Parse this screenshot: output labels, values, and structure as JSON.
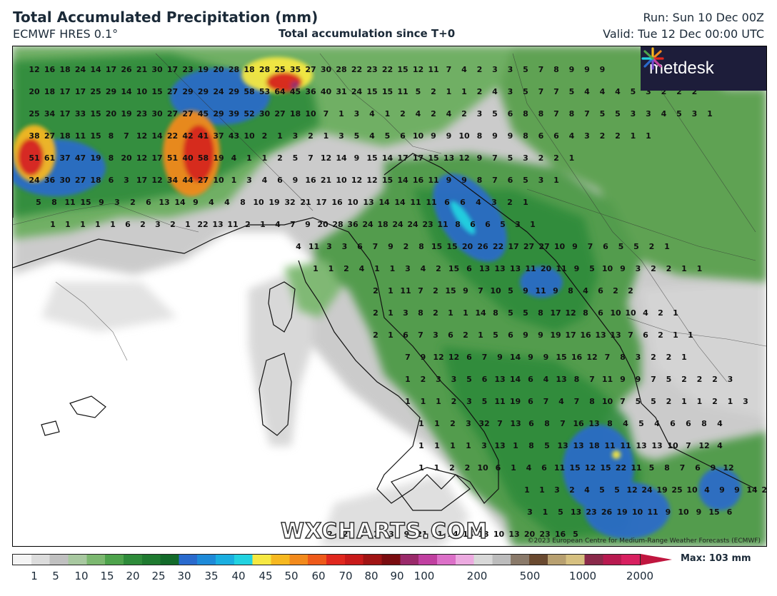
{
  "header": {
    "title": "Total Accumulated Precipitation (mm)",
    "model": "ECMWF HRES 0.1°",
    "subtitle": "Total accumulation since T+0",
    "run": "Run: Sun 10 Dec 00Z",
    "valid": "Valid: Tue 12 Dec 00:00 UTC"
  },
  "branding": {
    "logo_text": "metdesk",
    "logo_icon": "sparkle-icon",
    "watermark": "WXCHARTS.COM",
    "copyright": "©2023 European Centre for Medium-Range Weather Forecasts (ECMWF)"
  },
  "legend": {
    "max_label": "Max: 103 mm",
    "tick_labels": [
      "1",
      "5",
      "10",
      "15",
      "20",
      "25",
      "30",
      "35",
      "40",
      "45",
      "50",
      "60",
      "70",
      "80",
      "90",
      "100",
      "200",
      "500",
      "1000",
      "2000"
    ],
    "colors": [
      "#f4f4f4",
      "#dcdcdc",
      "#c0c0c0",
      "#a8c8a0",
      "#7cb870",
      "#4ea34c",
      "#2e8b3a",
      "#1f7a30",
      "#136a2a",
      "#2a6acd",
      "#1e8ad8",
      "#1aaee0",
      "#22d2e0",
      "#f6e842",
      "#f6b820",
      "#f28a1c",
      "#ee5a1a",
      "#e0281e",
      "#c81a1a",
      "#a01414",
      "#7a0c10",
      "#9a2a6a",
      "#c040a0",
      "#dc70c8",
      "#ecaae0",
      "#d8d8d8",
      "#bcbcbc",
      "#8a7a6a",
      "#6a4a30",
      "#b8a070",
      "#d6c080",
      "#8a2a4a",
      "#b81a50",
      "#d82060"
    ]
  },
  "grid_values": [
    [
      "12",
      "16",
      "18",
      "24",
      "14",
      "17",
      "26",
      "21",
      "30",
      "17",
      "23",
      "19",
      "20",
      "28",
      "18",
      "28",
      "25",
      "35",
      "27",
      "30",
      "28",
      "22",
      "23",
      "22",
      "15",
      "12",
      "11",
      "7",
      "4",
      "2",
      "3",
      "3",
      "5",
      "7",
      "8",
      "9",
      "9",
      "9"
    ],
    [
      "20",
      "18",
      "17",
      "17",
      "25",
      "29",
      "14",
      "10",
      "15",
      "27",
      "29",
      "29",
      "24",
      "29",
      "58",
      "53",
      "64",
      "45",
      "36",
      "40",
      "31",
      "24",
      "15",
      "15",
      "11",
      "5",
      "2",
      "1",
      "1",
      "2",
      "4",
      "3",
      "5",
      "7",
      "7",
      "5",
      "4",
      "4",
      "4",
      "5",
      "3",
      "2",
      "2",
      "2"
    ],
    [
      "25",
      "34",
      "17",
      "33",
      "15",
      "20",
      "19",
      "23",
      "30",
      "27",
      "27",
      "45",
      "29",
      "39",
      "52",
      "30",
      "27",
      "18",
      "10",
      "7",
      "1",
      "3",
      "4",
      "1",
      "2",
      "4",
      "2",
      "4",
      "2",
      "3",
      "5",
      "6",
      "8",
      "8",
      "7",
      "8",
      "7",
      "5",
      "5",
      "3",
      "3",
      "4",
      "5",
      "3",
      "1"
    ],
    [
      "38",
      "27",
      "18",
      "11",
      "15",
      "8",
      "7",
      "12",
      "14",
      "22",
      "42",
      "41",
      "37",
      "43",
      "10",
      "2",
      "1",
      "3",
      "2",
      "1",
      "3",
      "5",
      "4",
      "5",
      "6",
      "10",
      "9",
      "9",
      "10",
      "8",
      "9",
      "9",
      "8",
      "6",
      "6",
      "4",
      "3",
      "2",
      "2",
      "1",
      "1"
    ],
    [
      "51",
      "61",
      "37",
      "47",
      "19",
      "8",
      "20",
      "12",
      "17",
      "51",
      "40",
      "58",
      "19",
      "4",
      "1",
      "1",
      "2",
      "5",
      "7",
      "12",
      "14",
      "9",
      "15",
      "14",
      "17",
      "17",
      "15",
      "13",
      "12",
      "9",
      "7",
      "5",
      "3",
      "2",
      "2",
      "1"
    ],
    [
      "24",
      "36",
      "30",
      "27",
      "18",
      "6",
      "3",
      "17",
      "12",
      "34",
      "44",
      "27",
      "10",
      "1",
      "3",
      "4",
      "6",
      "9",
      "16",
      "21",
      "10",
      "12",
      "12",
      "15",
      "14",
      "16",
      "11",
      "9",
      "9",
      "8",
      "7",
      "6",
      "5",
      "3",
      "1"
    ],
    [
      "5",
      "8",
      "11",
      "15",
      "9",
      "3",
      "2",
      "6",
      "13",
      "14",
      "9",
      "4",
      "4",
      "8",
      "10",
      "19",
      "32",
      "21",
      "17",
      "16",
      "10",
      "13",
      "14",
      "14",
      "11",
      "11",
      "6",
      "6",
      "4",
      "3",
      "2",
      "1"
    ],
    [
      "1",
      "1",
      "1",
      "1",
      "1",
      "6",
      "2",
      "3",
      "2",
      "1",
      "22",
      "13",
      "11",
      "2",
      "1",
      "4",
      "7",
      "9",
      "20",
      "28",
      "36",
      "24",
      "18",
      "24",
      "24",
      "23",
      "11",
      "8",
      "6",
      "6",
      "5",
      "3",
      "1"
    ],
    [
      "4",
      "11",
      "3",
      "3",
      "6",
      "7",
      "9",
      "2",
      "8",
      "15",
      "15",
      "20",
      "26",
      "22",
      "17",
      "27",
      "27",
      "10",
      "9",
      "7",
      "6",
      "5",
      "5",
      "2",
      "1"
    ],
    [
      "1",
      "1",
      "2",
      "4",
      "1",
      "1",
      "3",
      "4",
      "2",
      "15",
      "6",
      "13",
      "13",
      "13",
      "11",
      "20",
      "11",
      "9",
      "5",
      "10",
      "9",
      "3",
      "2",
      "2",
      "1",
      "1"
    ],
    [
      "2",
      "1",
      "11",
      "7",
      "2",
      "15",
      "9",
      "7",
      "10",
      "5",
      "9",
      "11",
      "9",
      "8",
      "4",
      "6",
      "2",
      "2"
    ],
    [
      "2",
      "1",
      "3",
      "8",
      "2",
      "1",
      "1",
      "14",
      "8",
      "5",
      "5",
      "8",
      "17",
      "12",
      "8",
      "6",
      "10",
      "10",
      "4",
      "2",
      "1"
    ],
    [
      "2",
      "1",
      "6",
      "7",
      "3",
      "6",
      "2",
      "1",
      "5",
      "6",
      "9",
      "9",
      "19",
      "17",
      "16",
      "13",
      "13",
      "7",
      "6",
      "2",
      "1",
      "1"
    ],
    [
      "7",
      "9",
      "12",
      "12",
      "6",
      "7",
      "9",
      "14",
      "9",
      "9",
      "15",
      "16",
      "12",
      "7",
      "8",
      "3",
      "2",
      "2",
      "1"
    ],
    [
      "1",
      "2",
      "3",
      "3",
      "5",
      "6",
      "13",
      "14",
      "6",
      "4",
      "13",
      "8",
      "7",
      "11",
      "9",
      "9",
      "7",
      "5",
      "2",
      "2",
      "2",
      "3"
    ],
    [
      "1",
      "1",
      "1",
      "2",
      "3",
      "5",
      "11",
      "19",
      "6",
      "7",
      "4",
      "7",
      "8",
      "10",
      "7",
      "5",
      "5",
      "2",
      "1",
      "1",
      "2",
      "1",
      "3"
    ],
    [
      "1",
      "1",
      "2",
      "3",
      "32",
      "7",
      "13",
      "6",
      "8",
      "7",
      "16",
      "13",
      "8",
      "4",
      "5",
      "4",
      "6",
      "6",
      "8",
      "4"
    ],
    [
      "1",
      "1",
      "1",
      "1",
      "3",
      "13",
      "1",
      "8",
      "5",
      "13",
      "13",
      "18",
      "11",
      "11",
      "13",
      "13",
      "10",
      "7",
      "12",
      "4"
    ],
    [
      "1",
      "1",
      "2",
      "2",
      "10",
      "6",
      "1",
      "4",
      "6",
      "11",
      "15",
      "12",
      "15",
      "22",
      "11",
      "5",
      "8",
      "7",
      "6",
      "9",
      "12"
    ],
    [
      "1",
      "1",
      "3",
      "2",
      "4",
      "5",
      "5",
      "12",
      "24",
      "19",
      "25",
      "10",
      "4",
      "9",
      "9",
      "14",
      "25",
      "10"
    ],
    [
      "3",
      "1",
      "5",
      "13",
      "23",
      "26",
      "19",
      "10",
      "11",
      "9",
      "10",
      "9",
      "15",
      "6"
    ],
    [
      "2",
      "2",
      "1",
      "1",
      "3",
      "9",
      "21",
      "21",
      "14",
      "14",
      "13",
      "10",
      "13",
      "20",
      "23",
      "16",
      "5"
    ]
  ]
}
